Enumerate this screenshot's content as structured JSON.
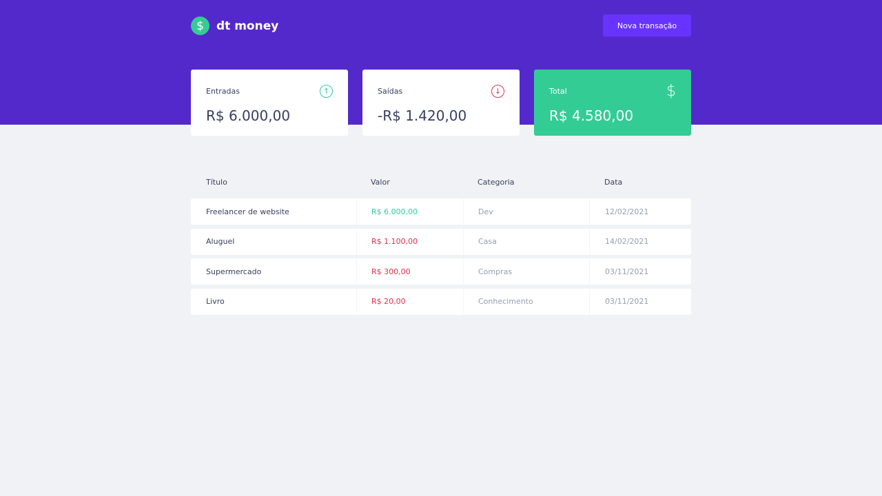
{
  "app": {
    "name": "dt money",
    "logo_icon": "dollar-circle-icon"
  },
  "header": {
    "new_transaction_label": "Nova transação"
  },
  "summary": {
    "income": {
      "label": "Entradas",
      "value": "R$ 6.000,00",
      "icon": "arrow-up-circle-icon",
      "color": "#33cc95"
    },
    "outcome": {
      "label": "Saídas",
      "value": "-R$ 1.420,00",
      "icon": "arrow-down-circle-icon",
      "color": "#e52e4d"
    },
    "total": {
      "label": "Total",
      "value": "R$ 4.580,00",
      "icon": "dollar-icon",
      "color": "#33cc95"
    }
  },
  "table": {
    "headers": [
      "Título",
      "Valor",
      "Categoria",
      "Data"
    ],
    "rows": [
      {
        "title": "Freelancer de website",
        "amount": "R$ 6.000,00",
        "type": "deposit",
        "category": "Dev",
        "date": "12/02/2021"
      },
      {
        "title": "Aluguel",
        "amount": "R$ 1.100,00",
        "type": "withdraw",
        "category": "Casa",
        "date": "14/02/2021"
      },
      {
        "title": "Supermercado",
        "amount": "R$ 300,00",
        "type": "withdraw",
        "category": "Compras",
        "date": "03/11/2021"
      },
      {
        "title": "Livro",
        "amount": "R$ 20,00",
        "type": "withdraw",
        "category": "Conhecimento",
        "date": "03/11/2021"
      }
    ]
  },
  "colors": {
    "header_bg": "#5429cc",
    "button_bg": "#6933ff",
    "background": "#f0f2f5",
    "text": "#363f5f"
  }
}
